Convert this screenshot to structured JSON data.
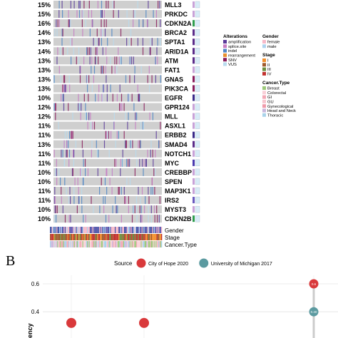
{
  "panel_a": {
    "genes": [
      {
        "pct": "15%",
        "name": "MLL3",
        "side": null
      },
      {
        "pct": "15%",
        "name": "PRKDC",
        "side": null
      },
      {
        "pct": "16%",
        "name": "CDKN2A",
        "side": "#2e9e4f"
      },
      {
        "pct": "14%",
        "name": "BRCA2",
        "side": "#5b2c8a"
      },
      {
        "pct": "13%",
        "name": "SPTA1",
        "side": "#5b2c8a"
      },
      {
        "pct": "14%",
        "name": "ARID1A",
        "side": "#5b2c8a"
      },
      {
        "pct": "13%",
        "name": "ATM",
        "side": "#5b2c8a"
      },
      {
        "pct": "13%",
        "name": "FAT1",
        "side": null
      },
      {
        "pct": "13%",
        "name": "GNAS",
        "side": "#8a1c5c"
      },
      {
        "pct": "13%",
        "name": "PIK3CA",
        "side": "#8a1c5c"
      },
      {
        "pct": "10%",
        "name": "EGFR",
        "side": "#3a2a8a"
      },
      {
        "pct": "12%",
        "name": "GPR124",
        "side": null
      },
      {
        "pct": "12%",
        "name": "MLL",
        "side": null
      },
      {
        "pct": "11%",
        "name": "ASXL1",
        "side": null
      },
      {
        "pct": "11%",
        "name": "ERBB2",
        "side": "#3a2a8a"
      },
      {
        "pct": "13%",
        "name": "SMAD4",
        "side": "#5b2c8a"
      },
      {
        "pct": "11%",
        "name": "NOTCH1",
        "side": null
      },
      {
        "pct": "11%",
        "name": "MYC",
        "side": "#4a3ab0"
      },
      {
        "pct": "10%",
        "name": "CREBBP",
        "side": null
      },
      {
        "pct": "10%",
        "name": "SPEN",
        "side": null
      },
      {
        "pct": "11%",
        "name": "MAP3K1",
        "side": null
      },
      {
        "pct": "11%",
        "name": "IRS2",
        "side": "#6a5ac0"
      },
      {
        "pct": "10%",
        "name": "MYST3",
        "side": null
      },
      {
        "pct": "10%",
        "name": "CDKN2B",
        "side": "#2e9e4f"
      }
    ],
    "annotation_tracks": [
      "Gender",
      "Stage",
      "Cancer.Type"
    ],
    "legend": {
      "alterations": {
        "title": "Alterations",
        "items": [
          {
            "label": "amplification",
            "color": "#5b3a9a"
          },
          {
            "label": "splice.site",
            "color": "#c77cc4"
          },
          {
            "label": "indel",
            "color": "#4e86c6"
          },
          {
            "label": "rearrangement",
            "color": "#e8912f"
          },
          {
            "label": "SNV",
            "color": "#8a1c5c"
          },
          {
            "label": "VUS",
            "color": "#b8dcef"
          }
        ]
      },
      "gender": {
        "title": "Gender",
        "items": [
          {
            "label": "female",
            "color": "#f6b8c8"
          },
          {
            "label": "male",
            "color": "#aed2ee"
          }
        ]
      },
      "stage": {
        "title": "Stage",
        "items": [
          {
            "label": "I",
            "color": "#f28e2b"
          },
          {
            "label": "II",
            "color": "#a05a2c"
          },
          {
            "label": "III",
            "color": "#6b8e3e"
          },
          {
            "label": "IV",
            "color": "#c2312e"
          }
        ]
      },
      "cancer_type": {
        "title": "Cancer.Type",
        "items": [
          {
            "label": "Breast",
            "color": "#9cc97a"
          },
          {
            "label": "Colorectal",
            "color": "#f9d0d8"
          },
          {
            "label": "GI",
            "color": "#f3a8b5"
          },
          {
            "label": "GU",
            "color": "#f7c6cf"
          },
          {
            "label": "Gynecological",
            "color": "#f09aaa"
          },
          {
            "label": "Head and Neck",
            "color": "#c9b6dc"
          },
          {
            "label": "Thoracic",
            "color": "#a9d3ea"
          }
        ]
      }
    }
  },
  "panel_b": {
    "label": "B",
    "chart_data": {
      "type": "scatter",
      "legend_title": "Source",
      "series": [
        {
          "name": "City of Hope 2020",
          "color": "#d9393b",
          "points": [
            {
              "x": 1,
              "y": 0.32
            },
            {
              "x": 2,
              "y": 0.32
            },
            {
              "x": 3,
              "y": 0.6
            }
          ]
        },
        {
          "name": "University of Michigan 2017",
          "color": "#5b9aa0",
          "points": [
            {
              "x": 3,
              "y": 0.4
            }
          ]
        }
      ],
      "point_labels": [
        "0.6",
        "0.40"
      ],
      "y_ticks": [
        "0.6",
        "0.4"
      ],
      "ylim": [
        0.3,
        0.65
      ],
      "ylabel": "ency",
      "grid": true
    }
  }
}
